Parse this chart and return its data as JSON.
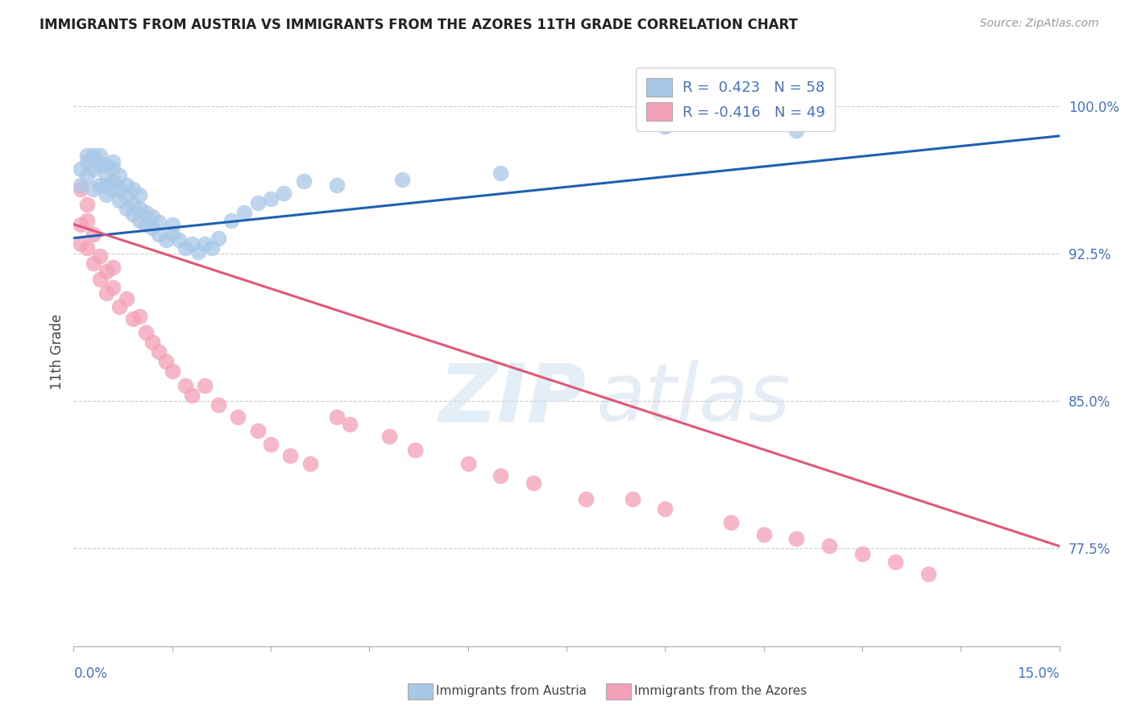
{
  "title": "IMMIGRANTS FROM AUSTRIA VS IMMIGRANTS FROM THE AZORES 11TH GRADE CORRELATION CHART",
  "source_text": "Source: ZipAtlas.com",
  "ylabel": "11th Grade",
  "x_min": 0.0,
  "x_max": 0.15,
  "y_min": 0.725,
  "y_max": 1.025,
  "austria_color": "#a8c8e8",
  "azores_color": "#f4a0b8",
  "austria_line_color": "#2060b0",
  "azores_line_color": "#e05878",
  "R_austria": 0.423,
  "N_austria": 58,
  "R_azores": -0.416,
  "N_azores": 49,
  "background_color": "#ffffff",
  "grid_color": "#cccccc",
  "y_ticks": [
    0.775,
    0.85,
    0.925,
    1.0
  ],
  "y_tick_labels": [
    "77.5%",
    "85.0%",
    "92.5%",
    "100.0%"
  ],
  "austria_scatter_x": [
    0.001,
    0.001,
    0.002,
    0.002,
    0.002,
    0.003,
    0.003,
    0.003,
    0.004,
    0.004,
    0.004,
    0.005,
    0.005,
    0.005,
    0.005,
    0.006,
    0.006,
    0.006,
    0.006,
    0.007,
    0.007,
    0.007,
    0.008,
    0.008,
    0.008,
    0.009,
    0.009,
    0.009,
    0.01,
    0.01,
    0.01,
    0.011,
    0.011,
    0.012,
    0.012,
    0.013,
    0.013,
    0.014,
    0.015,
    0.015,
    0.016,
    0.017,
    0.018,
    0.019,
    0.02,
    0.021,
    0.022,
    0.024,
    0.026,
    0.028,
    0.03,
    0.032,
    0.035,
    0.04,
    0.05,
    0.065,
    0.09,
    0.11
  ],
  "austria_scatter_y": [
    0.96,
    0.968,
    0.972,
    0.965,
    0.975,
    0.968,
    0.958,
    0.975,
    0.96,
    0.97,
    0.975,
    0.955,
    0.96,
    0.965,
    0.97,
    0.958,
    0.962,
    0.968,
    0.972,
    0.952,
    0.958,
    0.965,
    0.948,
    0.954,
    0.96,
    0.945,
    0.95,
    0.958,
    0.942,
    0.948,
    0.955,
    0.94,
    0.946,
    0.938,
    0.944,
    0.935,
    0.941,
    0.932,
    0.935,
    0.94,
    0.932,
    0.928,
    0.93,
    0.926,
    0.93,
    0.928,
    0.933,
    0.942,
    0.946,
    0.951,
    0.953,
    0.956,
    0.962,
    0.96,
    0.963,
    0.966,
    0.99,
    0.988
  ],
  "azores_scatter_x": [
    0.001,
    0.001,
    0.001,
    0.002,
    0.002,
    0.002,
    0.003,
    0.003,
    0.004,
    0.004,
    0.005,
    0.005,
    0.006,
    0.006,
    0.007,
    0.008,
    0.009,
    0.01,
    0.011,
    0.012,
    0.013,
    0.014,
    0.015,
    0.017,
    0.018,
    0.02,
    0.022,
    0.025,
    0.028,
    0.03,
    0.033,
    0.036,
    0.04,
    0.042,
    0.048,
    0.052,
    0.06,
    0.065,
    0.07,
    0.078,
    0.085,
    0.09,
    0.1,
    0.105,
    0.11,
    0.115,
    0.12,
    0.125,
    0.13
  ],
  "azores_scatter_y": [
    0.958,
    0.94,
    0.93,
    0.942,
    0.928,
    0.95,
    0.935,
    0.92,
    0.924,
    0.912,
    0.916,
    0.905,
    0.908,
    0.918,
    0.898,
    0.902,
    0.892,
    0.893,
    0.885,
    0.88,
    0.875,
    0.87,
    0.865,
    0.858,
    0.853,
    0.858,
    0.848,
    0.842,
    0.835,
    0.828,
    0.822,
    0.818,
    0.842,
    0.838,
    0.832,
    0.825,
    0.818,
    0.812,
    0.808,
    0.8,
    0.8,
    0.795,
    0.788,
    0.782,
    0.78,
    0.776,
    0.772,
    0.768,
    0.762
  ],
  "austria_trendline_x": [
    0.0,
    0.15
  ],
  "austria_trendline_y": [
    0.933,
    0.985
  ],
  "azores_trendline_x": [
    0.0,
    0.15
  ],
  "azores_trendline_y": [
    0.94,
    0.776
  ]
}
